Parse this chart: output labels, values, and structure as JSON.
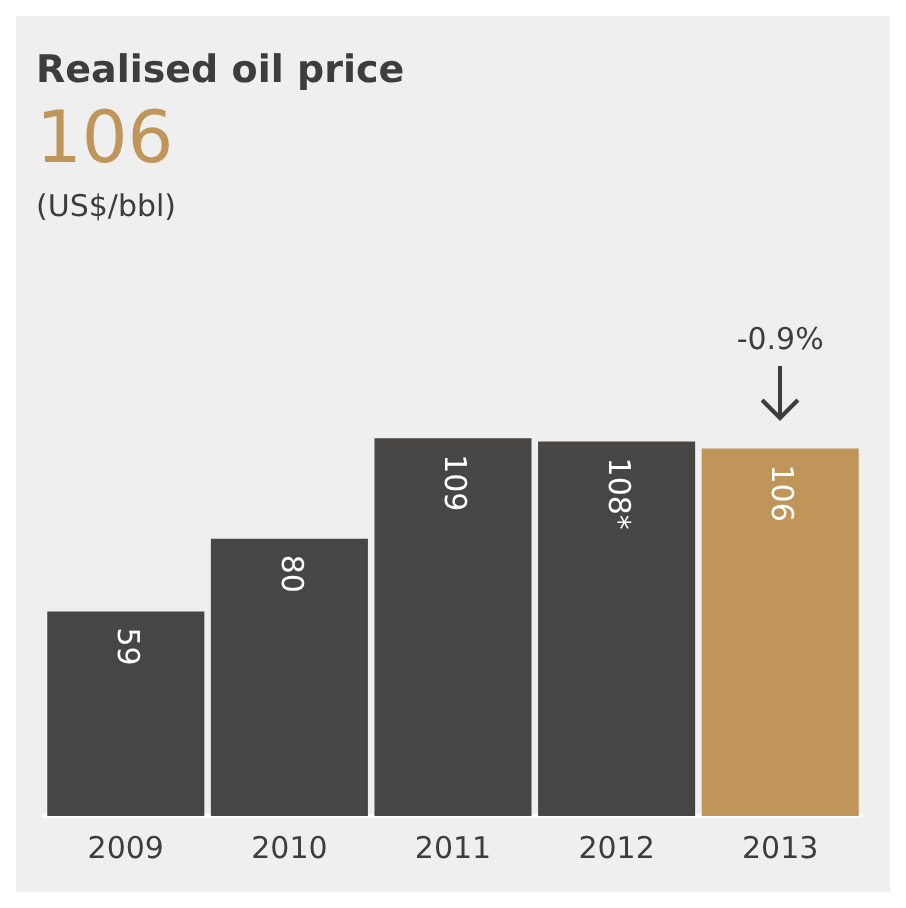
{
  "chart_data": {
    "type": "bar",
    "title": "Realised oil price",
    "subtitle": "106",
    "categories": [
      "2009",
      "2010",
      "2011",
      "2012",
      "2013"
    ],
    "values": [
      59,
      80,
      109,
      108,
      106
    ],
    "colors": [
      "#474645",
      "#474645",
      "#474645",
      "#474645",
      "#c0955a"
    ],
    "value_labels": [
      "59",
      "80",
      "109",
      "108*",
      "106"
    ],
    "annotations": [
      "(US$/bbl)",
      "-0.9%"
    ],
    "grid": false,
    "legend": false
  }
}
